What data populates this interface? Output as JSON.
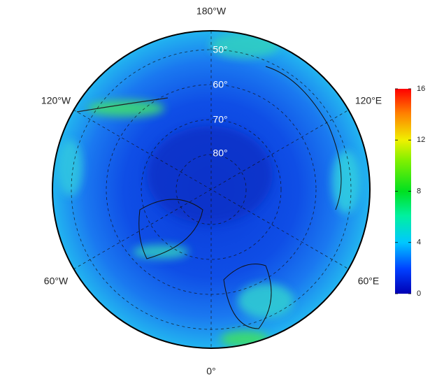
{
  "map": {
    "lon_labels": [
      "180°W",
      "120°W",
      "120°E",
      "60°W",
      "60°E",
      "0°"
    ],
    "lat_labels": [
      "50°",
      "60°",
      "70°",
      "80°"
    ],
    "colorbar": {
      "lim": [
        0,
        16
      ],
      "ticks": [
        0,
        4,
        8,
        12,
        16
      ]
    }
  }
}
